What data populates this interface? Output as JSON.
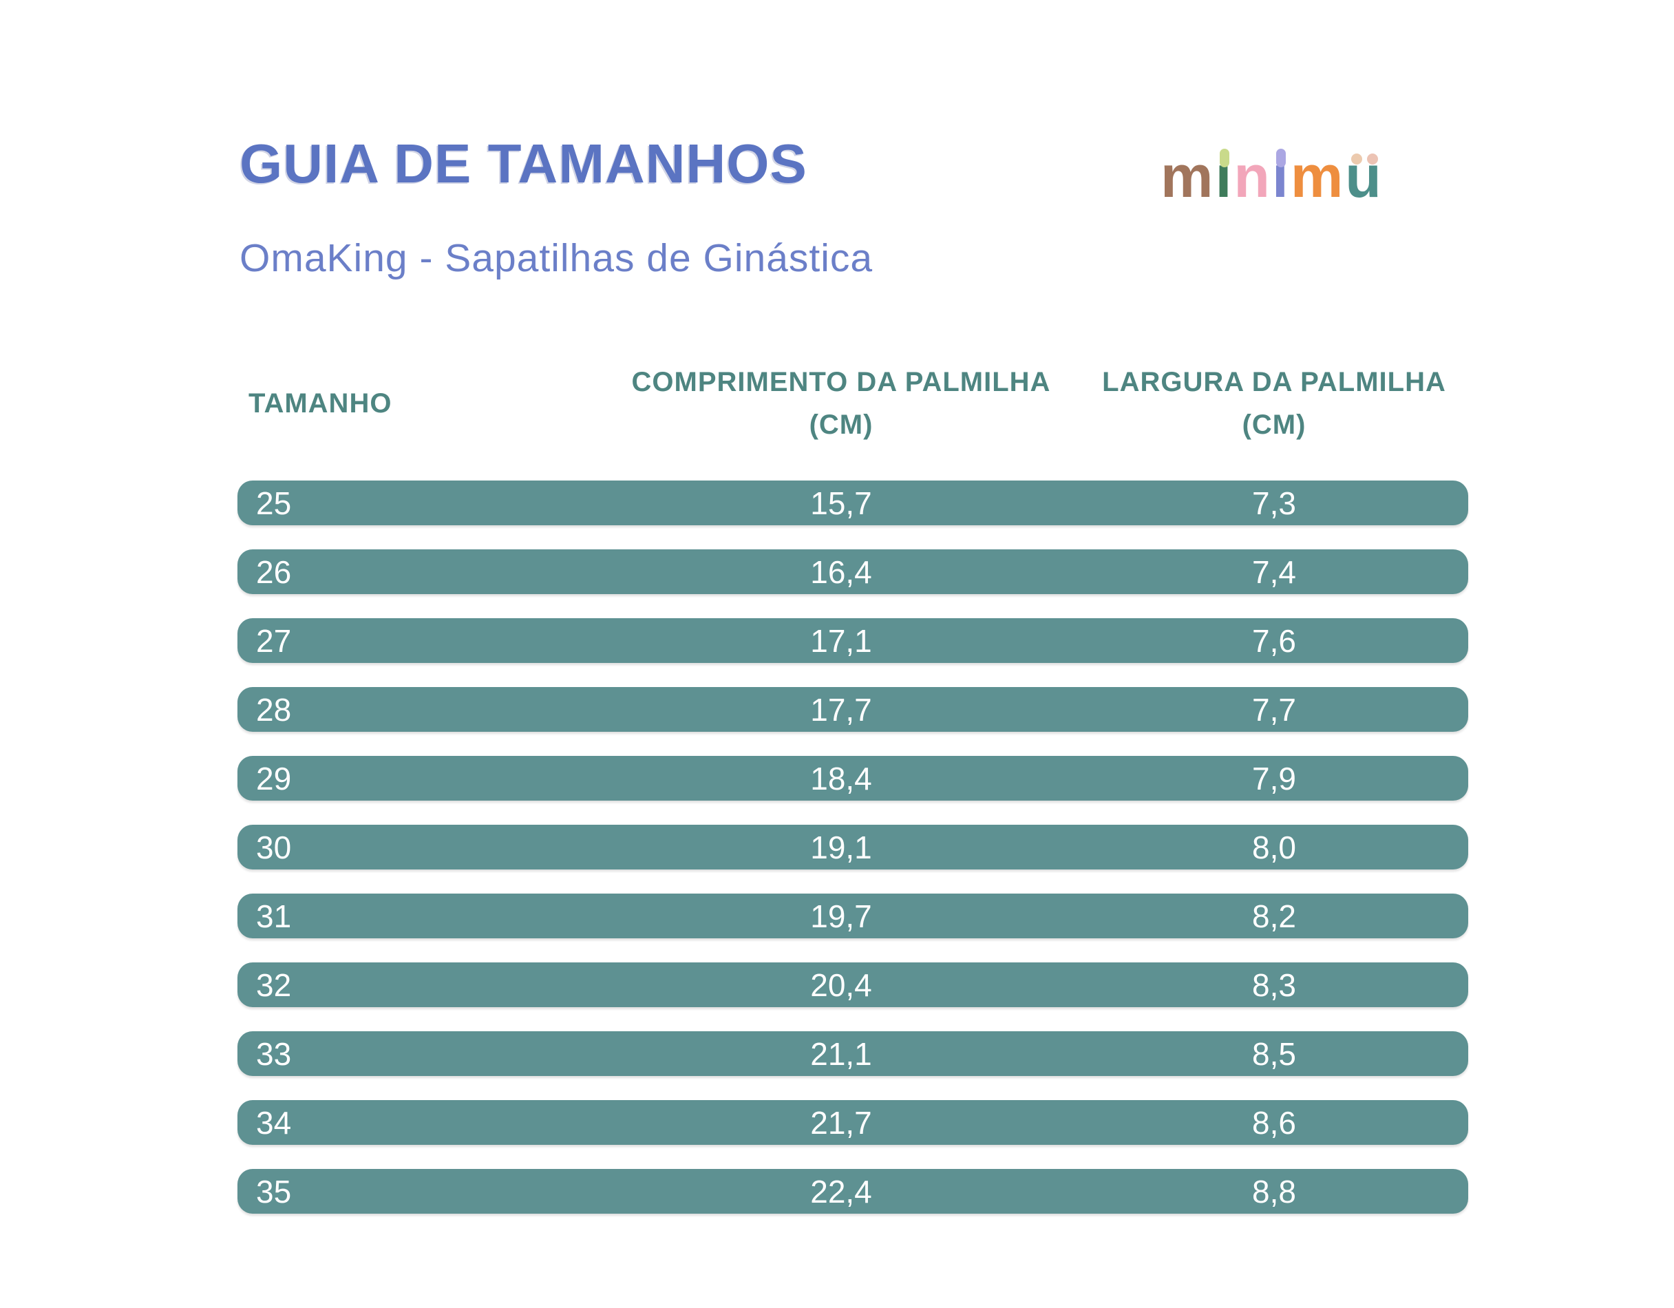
{
  "page": {
    "title": "GUIA DE TAMANHOS",
    "subtitle": "OmaKing - Sapatilhas de Ginástica"
  },
  "logo": {
    "brand": "minimü",
    "letters": [
      {
        "char": "m",
        "color": "#a1755c",
        "dots": []
      },
      {
        "char": "ı",
        "color": "#3f7c5b",
        "dots": [
          "#c9da8b"
        ]
      },
      {
        "char": "n",
        "color": "#f2a6ba",
        "dots": []
      },
      {
        "char": "ı",
        "color": "#7b85cf",
        "dots": [
          "#aba7e3"
        ]
      },
      {
        "char": "m",
        "color": "#ee8e3f",
        "dots": []
      },
      {
        "char": "u",
        "color": "#4d8f8a",
        "dots": [
          "#eccaae",
          "#ecc3b4"
        ]
      }
    ]
  },
  "table": {
    "columns": [
      {
        "label": "TAMANHO",
        "sub": ""
      },
      {
        "label": "COMPRIMENTO DA PALMILHA",
        "sub": "(CM)"
      },
      {
        "label": "LARGURA DA PALMILHA",
        "sub": "(CM)"
      }
    ],
    "rows": [
      {
        "size": "25",
        "length": "15,7",
        "width": "7,3"
      },
      {
        "size": "26",
        "length": "16,4",
        "width": "7,4"
      },
      {
        "size": "27",
        "length": "17,1",
        "width": "7,6"
      },
      {
        "size": "28",
        "length": "17,7",
        "width": "7,7"
      },
      {
        "size": "29",
        "length": "18,4",
        "width": "7,9"
      },
      {
        "size": "30",
        "length": "19,1",
        "width": "8,0"
      },
      {
        "size": "31",
        "length": "19,7",
        "width": "8,2"
      },
      {
        "size": "32",
        "length": "20,4",
        "width": "8,3"
      },
      {
        "size": "33",
        "length": "21,1",
        "width": "8,5"
      },
      {
        "size": "34",
        "length": "21,7",
        "width": "8,6"
      },
      {
        "size": "35",
        "length": "22,4",
        "width": "8,8"
      }
    ]
  },
  "colors": {
    "background": "#ffffff",
    "title_blue": "#5b74c2",
    "subtitle_blue": "#6b7fc8",
    "header_teal": "#4e8581",
    "row_teal": "#5e9192",
    "row_text": "#ffffff"
  }
}
